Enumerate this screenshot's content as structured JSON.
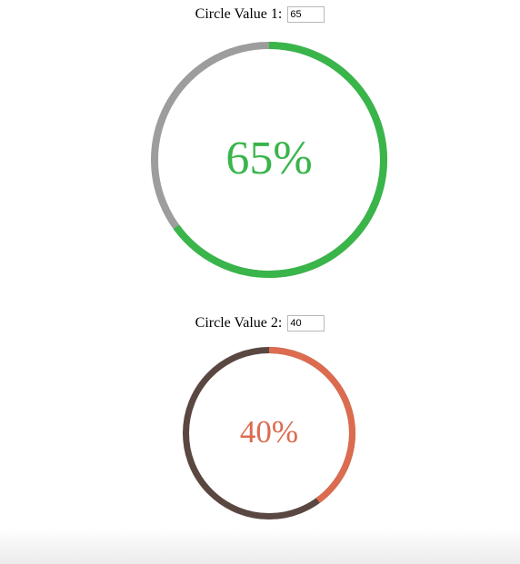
{
  "circles": [
    {
      "label": "Circle Value 1:",
      "input_value": "65",
      "percent_text": "65%",
      "value": 65,
      "fill_color": "#39b54a",
      "track_color": "#9d9d9d",
      "text_color": "#39b54a"
    },
    {
      "label": "Circle Value 2:",
      "input_value": "40",
      "percent_text": "40%",
      "value": 40,
      "fill_color": "#dc6b4f",
      "track_color": "#5a4741",
      "text_color": "#dc6b4f"
    }
  ]
}
